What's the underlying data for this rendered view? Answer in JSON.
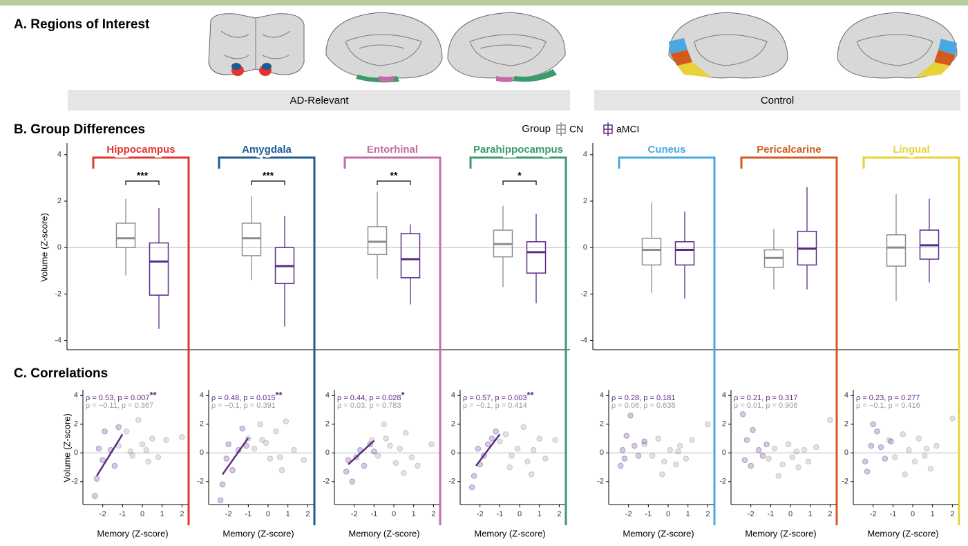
{
  "figure": {
    "panel_a_title": "A. Regions of Interest",
    "group_labels": [
      "AD-Relevant",
      "Control"
    ],
    "panel_b_title": "B. Group Differences",
    "panel_c_title": "C. Correlations"
  },
  "chart_data": [
    {
      "type": "box",
      "y_label": "Volume (Z-score)",
      "ylim": [
        -4.4,
        4.5
      ],
      "yticks": [
        -4,
        -2,
        0,
        2,
        4
      ],
      "legend_title": "Group",
      "series": [
        {
          "name": "CN",
          "color": "#8c8c8c"
        },
        {
          "name": "aMCI",
          "color": "#5b2a86"
        }
      ],
      "regions": [
        {
          "name": "Hippocampus",
          "color": "#e3342f",
          "sig": "***",
          "boxes": [
            [
              -1.2,
              0.0,
              0.4,
              1.05,
              2.1
            ],
            [
              -3.5,
              -2.05,
              -0.6,
              0.2,
              1.7
            ]
          ]
        },
        {
          "name": "Amygdala",
          "color": "#1f5a96",
          "sig": "***",
          "boxes": [
            [
              -1.4,
              -0.35,
              0.4,
              1.05,
              2.2
            ],
            [
              -3.4,
              -1.55,
              -0.8,
              0.0,
              1.35
            ]
          ]
        },
        {
          "name": "Entorhinal",
          "color": "#c56aa8",
          "sig": "**",
          "boxes": [
            [
              -1.35,
              -0.3,
              0.25,
              0.9,
              2.4
            ],
            [
              -2.45,
              -1.3,
              -0.5,
              0.6,
              1.0
            ]
          ]
        },
        {
          "name": "Parahippocampus",
          "color": "#3a9a6a",
          "sig": "*",
          "boxes": [
            [
              -1.7,
              -0.4,
              0.15,
              0.75,
              1.8
            ],
            [
              -2.4,
              -1.1,
              -0.2,
              0.25,
              1.45
            ]
          ]
        },
        {
          "name": "Cuneus",
          "color": "#4aa8e0",
          "boxes": [
            [
              -1.95,
              -0.75,
              -0.1,
              0.4,
              1.95
            ],
            [
              -2.2,
              -0.75,
              -0.1,
              0.25,
              1.55
            ]
          ]
        },
        {
          "name": "Pericalcarine",
          "color": "#d35a1f",
          "boxes": [
            [
              -1.8,
              -0.85,
              -0.45,
              -0.1,
              0.8
            ],
            [
              -1.8,
              -0.75,
              -0.05,
              0.7,
              2.6
            ]
          ]
        },
        {
          "name": "Lingual",
          "color": "#e8d23a",
          "boxes": [
            [
              -2.3,
              -0.8,
              0.0,
              0.55,
              2.3
            ],
            [
              -1.5,
              -0.5,
              0.1,
              0.75,
              2.1
            ]
          ]
        }
      ]
    },
    {
      "type": "scatter",
      "x_label": "Memory (Z-score)",
      "y_label": "Volume (Z-score)",
      "xlim": [
        -3,
        2.3
      ],
      "xticks": [
        -2,
        -1,
        0,
        1,
        2
      ],
      "ylim": [
        -3.6,
        4.4
      ],
      "yticks": [
        -2,
        0,
        2,
        4
      ],
      "panels": [
        {
          "stats": [
            "ρ = 0.53, p = 0.007",
            "ρ = −0.11, p = 0.367"
          ],
          "stars": "**",
          "fit": {
            "x": [
              -2.3,
              -1
            ],
            "y": [
              -1.6,
              1.3
            ]
          },
          "points": [
            {
              "x": [
                -1.2,
                -0.8,
                -0.5,
                -0.2,
                0,
                0.2,
                0.5,
                0.8,
                1.2,
                2.0,
                -0.6,
                0.3
              ],
              "y": [
                0.5,
                1.5,
                -0.2,
                2.3,
                0.6,
                0.2,
                1.0,
                -0.3,
                0.9,
                1.1,
                0.1,
                -0.6
              ]
            },
            {
              "x": [
                -2.4,
                -2.3,
                -2.2,
                -2.0,
                -1.9,
                -1.6,
                -1.4,
                -1.2
              ],
              "y": [
                -3.0,
                -1.8,
                0.3,
                -0.5,
                1.5,
                0.2,
                -0.9,
                1.8
              ]
            }
          ]
        },
        {
          "stats": [
            "ρ = 0.48, p = 0.015",
            "ρ = −0.1, p = 0.391"
          ],
          "stars": "**",
          "fit": {
            "x": [
              -2.3,
              -1
            ],
            "y": [
              -1.5,
              1.05
            ]
          },
          "points": [
            {
              "x": [
                -1.0,
                -0.7,
                -0.4,
                -0.1,
                0.1,
                0.4,
                0.6,
                0.9,
                1.3,
                1.8,
                -0.3,
                0.7
              ],
              "y": [
                1.0,
                0.3,
                2.0,
                0.7,
                -0.4,
                1.5,
                -0.3,
                2.2,
                0.2,
                -0.5,
                0.9,
                -1.2
              ]
            },
            {
              "x": [
                -2.4,
                -2.3,
                -2.1,
                -2.0,
                -1.8,
                -1.5,
                -1.3,
                -1.1
              ],
              "y": [
                -3.3,
                -2.2,
                -0.4,
                0.6,
                -1.2,
                0.2,
                1.7,
                0.5
              ]
            }
          ]
        },
        {
          "stats": [
            "ρ = 0.44, p = 0.028",
            "ρ = 0.03, p = 0.783"
          ],
          "stars": "*",
          "fit": {
            "x": [
              -2.3,
              -1
            ],
            "y": [
              -0.8,
              0.85
            ]
          },
          "points": [
            {
              "x": [
                -1.1,
                -0.8,
                -0.5,
                -0.2,
                0.1,
                0.3,
                0.6,
                0.9,
                1.2,
                1.9,
                -0.4,
                0.5
              ],
              "y": [
                0.9,
                -0.2,
                2.0,
                0.5,
                -0.7,
                0.3,
                1.4,
                -0.3,
                -0.9,
                0.6,
                1.0,
                -1.4
              ]
            },
            {
              "x": [
                -2.4,
                -2.3,
                -2.1,
                -1.9,
                -1.7,
                -1.5,
                -1.2,
                -1.0
              ],
              "y": [
                -1.3,
                -0.5,
                -2.0,
                -0.3,
                0.2,
                -0.9,
                0.6,
                0.1
              ]
            }
          ]
        },
        {
          "stats": [
            "ρ = 0.57, p = 0.003",
            "ρ = −0.1, p = 0.414"
          ],
          "stars": "**",
          "fit": {
            "x": [
              -2.2,
              -1
            ],
            "y": [
              -0.9,
              1.3
            ]
          },
          "points": [
            {
              "x": [
                -1.0,
                -0.7,
                -0.4,
                -0.1,
                0.2,
                0.4,
                0.7,
                1.0,
                1.3,
                1.8,
                -0.5,
                0.6
              ],
              "y": [
                0.8,
                1.3,
                -0.2,
                0.3,
                1.8,
                -0.6,
                0.2,
                1.0,
                -0.4,
                0.9,
                -1.0,
                -1.5
              ]
            },
            {
              "x": [
                -2.4,
                -2.3,
                -2.1,
                -2.0,
                -1.8,
                -1.6,
                -1.4,
                -1.2
              ],
              "y": [
                -2.4,
                -1.6,
                0.3,
                -0.8,
                -0.2,
                0.6,
                1.0,
                1.5
              ]
            }
          ]
        },
        {
          "stats": [
            "ρ = 0.28, p = 0.181",
            "ρ = 0.06, p = 0.638"
          ],
          "points": [
            {
              "x": [
                -1.2,
                -0.8,
                -0.5,
                -0.2,
                0.1,
                0.4,
                0.6,
                0.9,
                1.2,
                2.0,
                -0.3,
                0.5
              ],
              "y": [
                0.6,
                -0.2,
                1.0,
                -0.6,
                0.2,
                -0.8,
                0.5,
                -0.4,
                0.9,
                2.0,
                -1.5,
                0.1
              ]
            },
            {
              "x": [
                -2.4,
                -2.3,
                -2.2,
                -2.1,
                -1.9,
                -1.7,
                -1.5,
                -1.2
              ],
              "y": [
                -0.9,
                0.2,
                -0.4,
                1.2,
                2.6,
                0.5,
                -0.2,
                0.8
              ]
            }
          ]
        },
        {
          "stats": [
            "ρ = 0.21, p = 0.317",
            "ρ = 0.01, p = 0.906"
          ],
          "points": [
            {
              "x": [
                -1.1,
                -0.8,
                -0.4,
                -0.1,
                0.1,
                0.4,
                0.7,
                0.9,
                1.3,
                2.0,
                -0.6,
                0.3
              ],
              "y": [
                -0.4,
                0.3,
                -0.8,
                0.6,
                -0.3,
                -1.0,
                0.2,
                -0.6,
                0.4,
                2.3,
                -1.6,
                0.1
              ]
            },
            {
              "x": [
                -2.4,
                -2.3,
                -2.2,
                -2.0,
                -1.9,
                -1.6,
                -1.4,
                -1.2
              ],
              "y": [
                2.7,
                -0.5,
                0.9,
                -0.9,
                1.6,
                0.2,
                -0.2,
                0.6
              ]
            }
          ]
        },
        {
          "stats": [
            "ρ = 0.23, p = 0.277",
            "ρ = −0.1, p = 0.416"
          ],
          "points": [
            {
              "x": [
                -1.2,
                -0.9,
                -0.5,
                -0.2,
                0.1,
                0.3,
                0.6,
                0.9,
                1.2,
                2.0,
                -0.4,
                0.7
              ],
              "y": [
                0.9,
                -0.3,
                1.3,
                0.2,
                -0.6,
                1.0,
                -0.2,
                -1.1,
                0.5,
                2.4,
                -1.5,
                0.3
              ]
            },
            {
              "x": [
                -2.4,
                -2.3,
                -2.1,
                -2.0,
                -1.8,
                -1.6,
                -1.4,
                -1.1
              ],
              "y": [
                -0.6,
                -1.3,
                0.5,
                2.0,
                1.5,
                0.4,
                -0.4,
                0.8
              ]
            }
          ]
        }
      ]
    }
  ]
}
